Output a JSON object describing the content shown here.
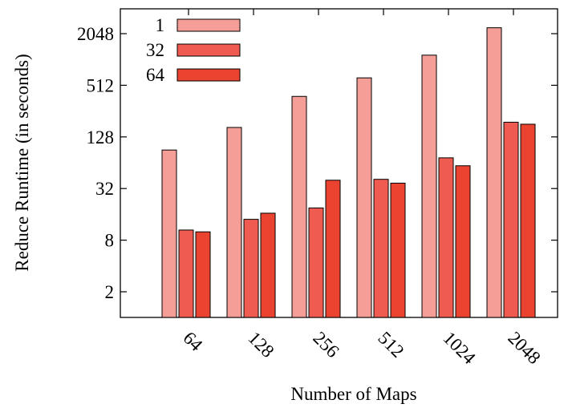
{
  "chart_data": {
    "type": "bar",
    "xlabel": "Number of Maps",
    "ylabel": "Reduce Runtime (in seconds)",
    "y_scale": "log2",
    "ylim": [
      1,
      4096
    ],
    "y_ticks": [
      2,
      8,
      32,
      128,
      512,
      2048
    ],
    "y_tick_labels": [
      "2",
      "8",
      "32",
      "128",
      "512",
      "2048"
    ],
    "grid": false,
    "legend": "top-left",
    "categories": [
      "64",
      "128",
      "256",
      "512",
      "1024",
      "2048"
    ],
    "series": [
      {
        "name": "1",
        "color": "#f59e98",
        "values": [
          90,
          165,
          380,
          625,
          1150,
          2400
        ]
      },
      {
        "name": "32",
        "color": "#ef5b50",
        "values": [
          10.5,
          14,
          19,
          41,
          73,
          190
        ]
      },
      {
        "name": "64",
        "color": "#ea4330",
        "values": [
          10,
          16.5,
          40,
          37,
          59,
          180
        ]
      }
    ]
  }
}
